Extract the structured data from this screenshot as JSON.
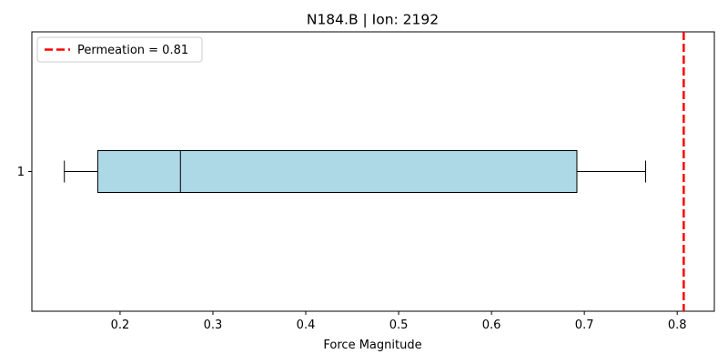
{
  "chart_data": {
    "type": "boxplot",
    "orientation": "horizontal",
    "title": "N184.B | Ion: 2192",
    "xlabel": "Force Magnitude",
    "ylabel": "",
    "xlim": [
      0.105,
      0.84
    ],
    "x_ticks": [
      0.2,
      0.3,
      0.4,
      0.5,
      0.6,
      0.7,
      0.8
    ],
    "x_tick_labels": [
      "0.2",
      "0.3",
      "0.4",
      "0.5",
      "0.6",
      "0.7",
      "0.8"
    ],
    "categories": [
      "1"
    ],
    "boxes": [
      {
        "category": "1",
        "whisker_low": 0.14,
        "q1": 0.176,
        "median": 0.265,
        "q3": 0.692,
        "whisker_high": 0.766
      }
    ],
    "box_color": "#add8e6",
    "reference_line": {
      "value": 0.807,
      "label": "Permeation = 0.81",
      "color": "#ff0000",
      "style": "dashed"
    },
    "legend_position": "top-left",
    "grid": false
  }
}
